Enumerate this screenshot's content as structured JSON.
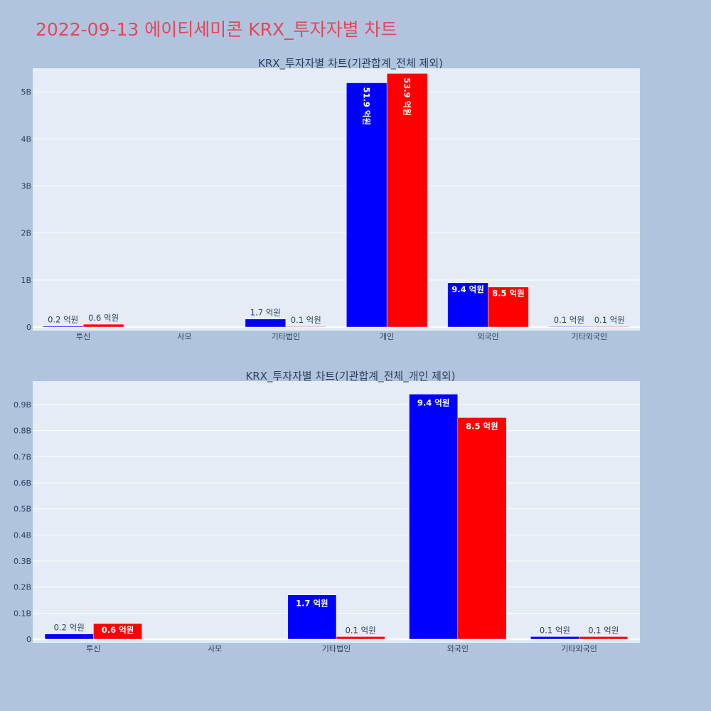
{
  "title": "2022-09-13 에이티세미콘 KRX_투자자별 차트",
  "colors": {
    "background": "#b0c4de",
    "plot_bg": "#e5ecf6",
    "title": "#e8455a",
    "series_a": "#0000ff",
    "series_b": "#ff0000"
  },
  "chart_data": [
    {
      "type": "bar",
      "title": "KRX_투자자별 차트(기관합계_전체 제외)",
      "categories": [
        "투신",
        "사모",
        "기타법인",
        "개인",
        "외국인",
        "기타외국인"
      ],
      "yticks": [
        "0",
        "1B",
        "2B",
        "3B",
        "4B",
        "5B"
      ],
      "ytick_values": [
        0,
        1,
        2,
        3,
        4,
        5
      ],
      "ylim": [
        0,
        5.5
      ],
      "unit": "B",
      "series": [
        {
          "color": "#0000ff",
          "values": [
            0.02,
            null,
            0.17,
            5.19,
            0.94,
            0.01
          ],
          "labels": [
            "0.2 억원",
            "",
            "1.7 억원",
            "51.9 억원",
            "9.4 억원",
            "0.1 억원"
          ]
        },
        {
          "color": "#ff0000",
          "values": [
            0.06,
            null,
            0.01,
            5.39,
            0.85,
            0.01
          ],
          "labels": [
            "0.6 억원",
            "",
            "0.1 억원",
            "53.9 억원",
            "8.5 억원",
            "0.1 억원"
          ]
        }
      ]
    },
    {
      "type": "bar",
      "title": "KRX_투자자별 차트(기관합계_전체_개인 제외)",
      "categories": [
        "투신",
        "사모",
        "기타법인",
        "외국인",
        "기타외국인"
      ],
      "yticks": [
        "0",
        "0.1B",
        "0.2B",
        "0.3B",
        "0.4B",
        "0.5B",
        "0.6B",
        "0.7B",
        "0.8B",
        "0.9B"
      ],
      "ytick_values": [
        0,
        0.1,
        0.2,
        0.3,
        0.4,
        0.5,
        0.6,
        0.7,
        0.8,
        0.9
      ],
      "ylim": [
        0,
        0.99
      ],
      "unit": "B",
      "series": [
        {
          "color": "#0000ff",
          "values": [
            0.02,
            null,
            0.17,
            0.94,
            0.01
          ],
          "labels": [
            "0.2 억원",
            "",
            "1.7 억원",
            "9.4 억원",
            "0.1 억원"
          ]
        },
        {
          "color": "#ff0000",
          "values": [
            0.06,
            null,
            0.01,
            0.85,
            0.01
          ],
          "labels": [
            "0.6 억원",
            "",
            "0.1 억원",
            "8.5 억원",
            "0.1 억원"
          ]
        }
      ]
    }
  ]
}
